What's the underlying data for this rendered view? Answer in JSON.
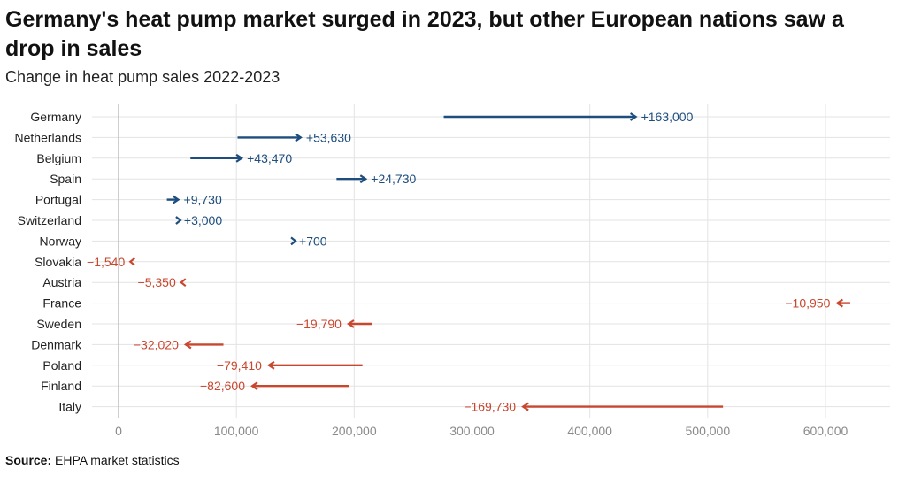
{
  "title": "Germany's heat pump market surged in 2023, but other European nations saw a drop in sales",
  "subtitle": "Change in heat pump sales 2022-2023",
  "source": {
    "label": "Source:",
    "text": " EHPA market statistics"
  },
  "colors": {
    "increase": "#1d4e7e",
    "decrease": "#c8472f",
    "grid": "#e3e3e3",
    "zero": "#bdbdbd"
  },
  "chart_data": {
    "type": "arrow",
    "title": "Germany's heat pump market surged in 2023, but other European nations saw a drop in sales",
    "subtitle": "Change in heat pump sales 2022-2023",
    "xlim": [
      0,
      650000
    ],
    "xticks": [
      0,
      100000,
      200000,
      300000,
      400000,
      500000,
      600000
    ],
    "xtick_labels": [
      "0",
      "100,000",
      "200,000",
      "300,000",
      "400,000",
      "500,000",
      "600,000"
    ],
    "rows": [
      {
        "country": "Germany",
        "sales_2022": 276000,
        "sales_2023": 439000,
        "change_label": "+163,000"
      },
      {
        "country": "Netherlands",
        "sales_2022": 101000,
        "sales_2023": 154630,
        "change_label": "+53,630"
      },
      {
        "country": "Belgium",
        "sales_2022": 61000,
        "sales_2023": 104470,
        "change_label": "+43,470"
      },
      {
        "country": "Spain",
        "sales_2022": 185000,
        "sales_2023": 209730,
        "change_label": "+24,730"
      },
      {
        "country": "Portugal",
        "sales_2022": 41000,
        "sales_2023": 50730,
        "change_label": "+9,730"
      },
      {
        "country": "Switzerland",
        "sales_2022": 48000,
        "sales_2023": 51000,
        "change_label": "+3,000"
      },
      {
        "country": "Norway",
        "sales_2022": 148000,
        "sales_2023": 148700,
        "change_label": "+700"
      },
      {
        "country": "Slovakia",
        "sales_2022": 13000,
        "sales_2023": 11460,
        "change_label": "−1,540"
      },
      {
        "country": "Austria",
        "sales_2022": 60000,
        "sales_2023": 54650,
        "change_label": "−5,350"
      },
      {
        "country": "France",
        "sales_2022": 621000,
        "sales_2023": 610050,
        "change_label": "−10,950"
      },
      {
        "country": "Sweden",
        "sales_2022": 215000,
        "sales_2023": 195210,
        "change_label": "−19,790"
      },
      {
        "country": "Denmark",
        "sales_2022": 89000,
        "sales_2023": 56980,
        "change_label": "−32,020"
      },
      {
        "country": "Poland",
        "sales_2022": 207000,
        "sales_2023": 127590,
        "change_label": "−79,410"
      },
      {
        "country": "Finland",
        "sales_2022": 196000,
        "sales_2023": 113400,
        "change_label": "−82,600"
      },
      {
        "country": "Italy",
        "sales_2022": 513000,
        "sales_2023": 343270,
        "change_label": "−169,730"
      }
    ]
  }
}
